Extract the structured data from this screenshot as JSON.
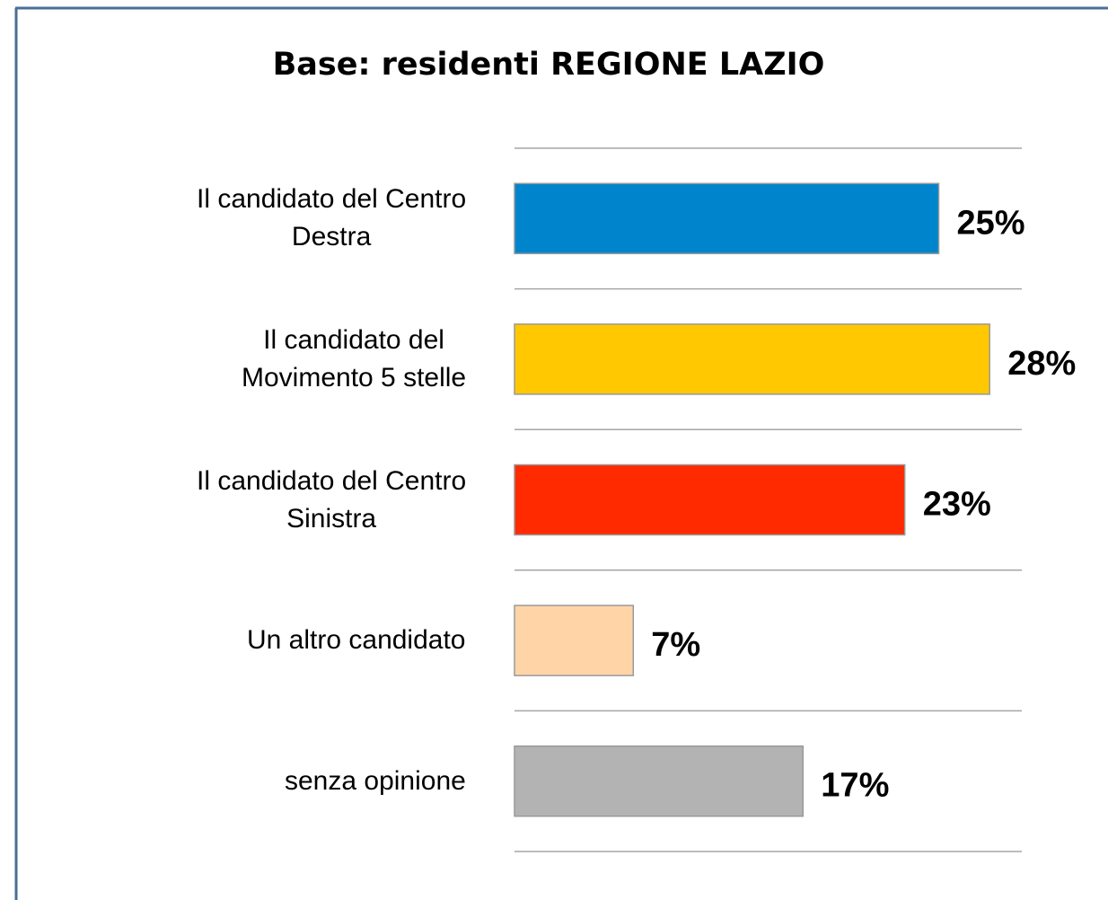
{
  "chart_data": {
    "type": "bar",
    "orientation": "horizontal",
    "title": "Base: residenti REGIONE LAZIO",
    "categories": [
      "Il candidato del Centro\nDestra",
      "Il candidato del\nMovimento 5 stelle",
      "Il candidato del Centro\nSinistra",
      "Un altro candidato",
      "senza opinione"
    ],
    "values": [
      25,
      28,
      23,
      7,
      17
    ],
    "value_labels": [
      "25%",
      "28%",
      "23%",
      "7%",
      "17%"
    ],
    "colors": [
      "#0085cc",
      "#ffc800",
      "#ff2a00",
      "#ffd5a8",
      "#b3b3b3"
    ],
    "xlim": [
      0,
      30
    ]
  }
}
